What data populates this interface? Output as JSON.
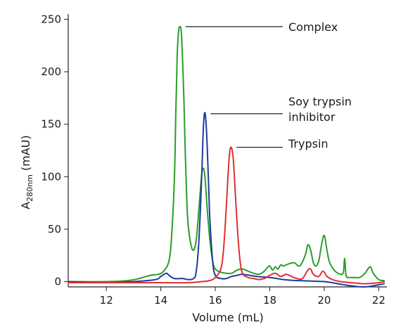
{
  "chart_data": {
    "type": "line",
    "xlabel": "Volume (mL)",
    "ylabel_main": "A",
    "ylabel_sub": "280nm",
    "ylabel_unit": " (mAU)",
    "xlim": [
      10.6,
      22.3
    ],
    "ylim": [
      -5,
      255
    ],
    "xticks": [
      12,
      14,
      16,
      18,
      20,
      22
    ],
    "yticks": [
      0,
      50,
      100,
      150,
      200,
      250
    ],
    "grid": false,
    "annotations": [
      {
        "lines": [
          "Complex"
        ],
        "target": "Complex peak",
        "x": 14.7,
        "y": 243
      },
      {
        "lines": [
          "Soy trypsin",
          "inhibitor"
        ],
        "target": "Soy trypsin inhibitor peak",
        "x": 15.62,
        "y": 160
      },
      {
        "lines": [
          "Trypsin"
        ],
        "target": "Trypsin peak",
        "x": 16.57,
        "y": 128
      }
    ],
    "series": [
      {
        "color": "#2a9d2a",
        "x": [
          10.6,
          12.0,
          12.8,
          13.2,
          13.6,
          13.9,
          14.1,
          14.3,
          14.4,
          14.5,
          14.55,
          14.6,
          14.65,
          14.7,
          14.75,
          14.8,
          14.85,
          14.9,
          14.95,
          15.0,
          15.1,
          15.2,
          15.3,
          15.4,
          15.5,
          15.55,
          15.6,
          15.65,
          15.7,
          15.8,
          15.9,
          16.0,
          16.2,
          16.4,
          16.6,
          16.8,
          17.0,
          17.2,
          17.4,
          17.6,
          17.8,
          17.9,
          18.0,
          18.1,
          18.2,
          18.3,
          18.4,
          18.5,
          18.7,
          18.9,
          19.1,
          19.3,
          19.4,
          19.5,
          19.6,
          19.7,
          19.8,
          19.9,
          20.0,
          20.1,
          20.2,
          20.4,
          20.6,
          20.7,
          20.75,
          20.8,
          20.9,
          21.1,
          21.3,
          21.5,
          21.6,
          21.7,
          21.8,
          22.0,
          22.2
        ],
        "y": [
          0,
          0,
          1,
          3,
          6,
          7,
          10,
          20,
          45,
          100,
          160,
          215,
          238,
          243,
          238,
          210,
          170,
          120,
          80,
          55,
          36,
          30,
          40,
          70,
          102,
          108,
          104,
          90,
          70,
          40,
          20,
          12,
          9,
          8,
          8,
          11,
          12,
          10,
          8,
          7,
          10,
          13,
          15,
          11,
          14,
          12,
          16,
          15,
          17,
          18,
          15,
          25,
          35,
          30,
          18,
          15,
          20,
          35,
          44,
          30,
          18,
          10,
          7,
          9,
          22,
          6,
          4,
          4,
          4,
          8,
          12,
          14,
          8,
          2,
          1
        ]
      },
      {
        "color": "#1f3a9e",
        "x": [
          10.6,
          12.0,
          13.0,
          13.8,
          14.0,
          14.2,
          14.3,
          14.5,
          14.8,
          15.0,
          15.2,
          15.3,
          15.4,
          15.5,
          15.55,
          15.6,
          15.65,
          15.7,
          15.75,
          15.8,
          15.9,
          16.0,
          16.2,
          16.4,
          16.6,
          16.8,
          17.0,
          17.5,
          18.0,
          18.5,
          19.0,
          20.0,
          20.5,
          21.0,
          21.5,
          22.0,
          22.2
        ],
        "y": [
          0,
          -1,
          0,
          2,
          5,
          8,
          6,
          3,
          3,
          2,
          3,
          10,
          40,
          100,
          140,
          160,
          155,
          130,
          95,
          60,
          20,
          6,
          3,
          3,
          5,
          6,
          7,
          5,
          4,
          2,
          1,
          0,
          -2,
          -4,
          -5,
          -3,
          -2
        ]
      },
      {
        "color": "#e03030",
        "x": [
          10.6,
          12.0,
          14.0,
          15.0,
          15.5,
          15.8,
          16.0,
          16.2,
          16.3,
          16.4,
          16.5,
          16.57,
          16.65,
          16.7,
          16.8,
          16.9,
          17.0,
          17.2,
          17.4,
          17.6,
          17.8,
          18.0,
          18.2,
          18.4,
          18.6,
          18.8,
          19.0,
          19.2,
          19.4,
          19.5,
          19.6,
          19.8,
          19.95,
          20.1,
          20.3,
          20.6,
          21.0,
          21.5,
          22.0,
          22.2
        ],
        "y": [
          -1,
          -1,
          -1,
          -1,
          0,
          1,
          4,
          12,
          30,
          70,
          115,
          128,
          120,
          100,
          55,
          22,
          8,
          4,
          3,
          2,
          3,
          6,
          8,
          5,
          7,
          5,
          3,
          3,
          11,
          12,
          7,
          5,
          10,
          5,
          2,
          0,
          -1,
          -2,
          -1,
          0
        ]
      }
    ]
  }
}
